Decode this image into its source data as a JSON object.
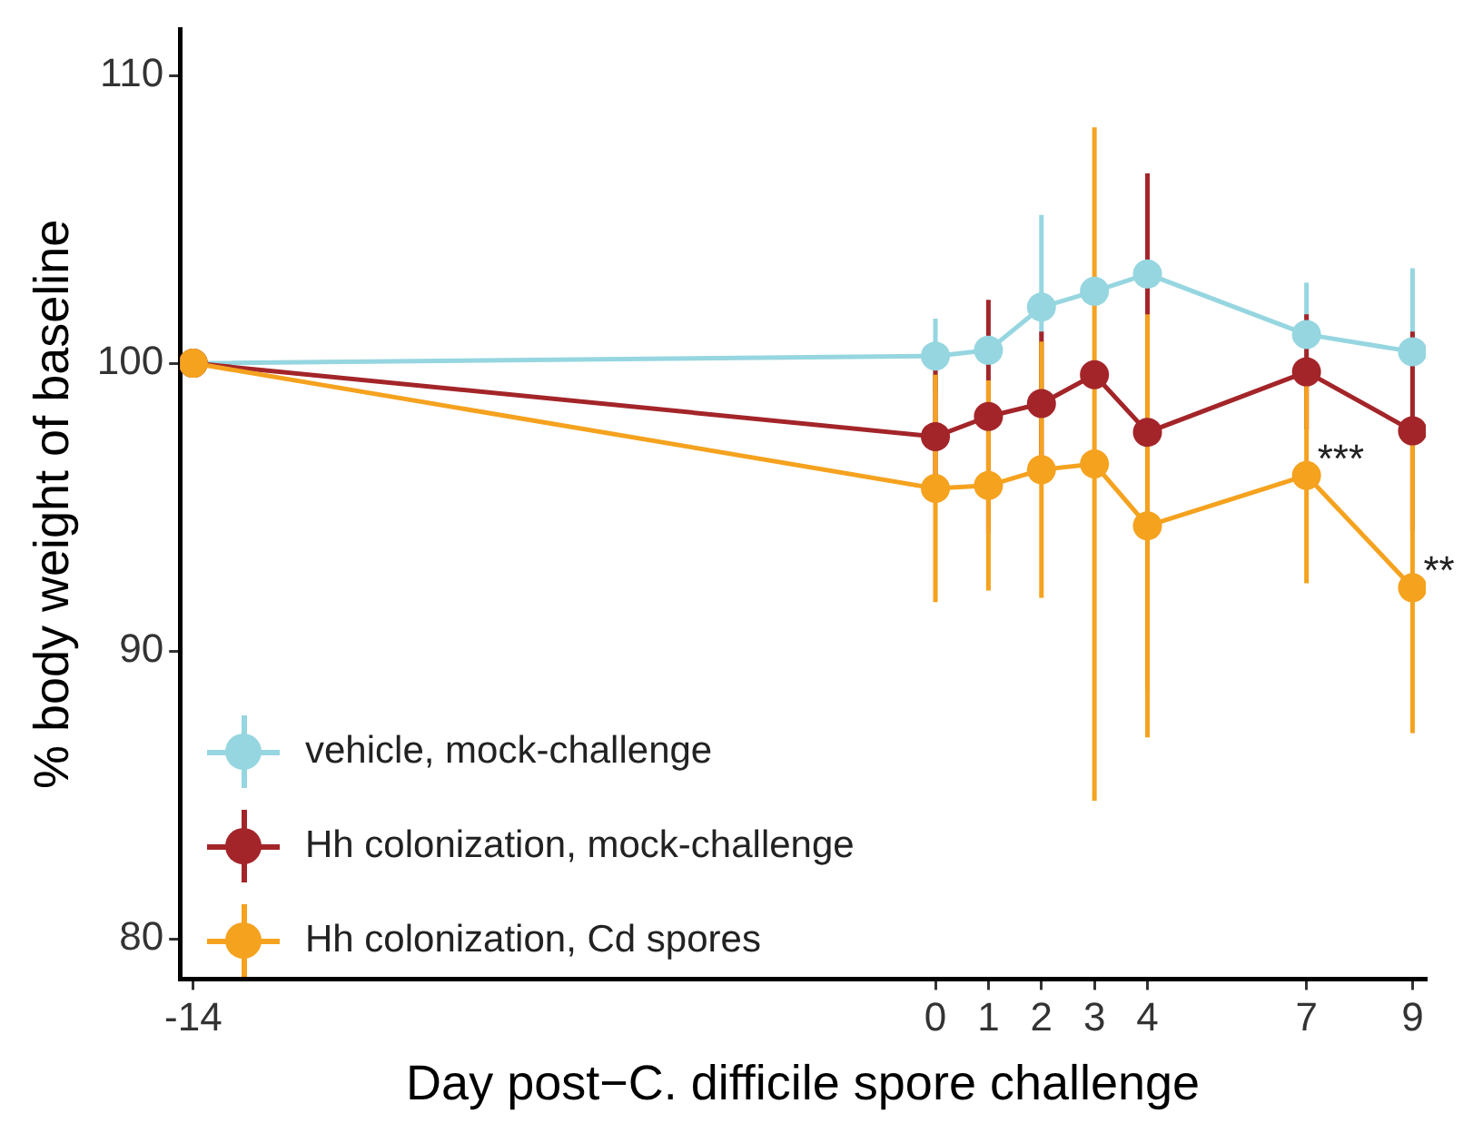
{
  "chart_data": {
    "type": "line",
    "xlabel": "Day post−C. difficile spore challenge",
    "ylabel": "% body weight of baseline",
    "x": [
      -14,
      0,
      1,
      2,
      3,
      4,
      7,
      9
    ],
    "xlim": [
      -14.25,
      9.25
    ],
    "xticks": [
      -14,
      0,
      1,
      2,
      3,
      4,
      7,
      9
    ],
    "ylim": [
      78.6,
      111.6
    ],
    "yticks": [
      80,
      90,
      100,
      110
    ],
    "grid": false,
    "legend": "bottom left",
    "marker": "circle",
    "line_style": "solid",
    "series": [
      {
        "name": "vehicle, mock-challenge",
        "color": "#96d6e0",
        "values": [
          100,
          100.25,
          100.45,
          101.95,
          102.5,
          103.1,
          101.0,
          100.4
        ],
        "errors": [
          null,
          1.3,
          null,
          3.2,
          null,
          null,
          1.8,
          2.9
        ]
      },
      {
        "name": "Hh colonization, mock-challenge",
        "color": "#a32529",
        "values": [
          100,
          97.45,
          98.15,
          98.6,
          99.6,
          97.6,
          99.7,
          97.65
        ],
        "errors": [
          null,
          2.3,
          4.05,
          2.5,
          null,
          9.0,
          2.0,
          3.45
        ]
      },
      {
        "name": "Hh colonization, Cd spores",
        "color": "#f5a21f",
        "values": [
          100,
          95.65,
          95.75,
          96.3,
          96.5,
          94.35,
          96.1,
          92.2
        ],
        "errors": [
          null,
          3.95,
          3.65,
          4.45,
          11.7,
          7.35,
          3.75,
          5.05
        ]
      }
    ],
    "annotations": [
      {
        "text": "***",
        "x": 7,
        "y": 96.1
      },
      {
        "text": "**",
        "x": 9,
        "y": 92.2
      }
    ]
  }
}
